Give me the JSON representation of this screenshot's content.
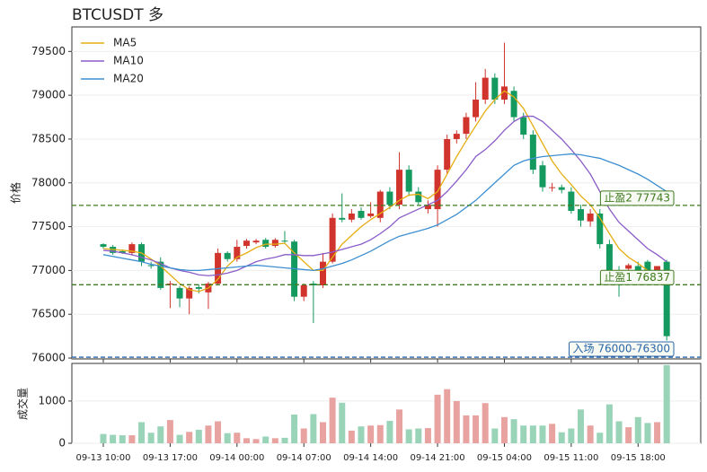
{
  "chart_data": {
    "type": "candlestick",
    "title": "BTCUSDT  多",
    "y_label": "价格",
    "volume_label": "成交量",
    "categories": [
      "09-13 10:00",
      null,
      null,
      null,
      null,
      null,
      null,
      "09-13 17:00",
      null,
      null,
      null,
      null,
      null,
      null,
      "09-14 00:00",
      null,
      null,
      null,
      null,
      null,
      null,
      "09-14 07:00",
      null,
      null,
      null,
      null,
      null,
      null,
      "09-14 14:00",
      null,
      null,
      null,
      null,
      null,
      null,
      "09-14 21:00",
      null,
      null,
      null,
      null,
      null,
      null,
      "09-15 04:00",
      null,
      null,
      null,
      null,
      null,
      null,
      "09-15 11:00",
      null,
      null,
      null,
      null,
      null,
      null,
      "09-15 18:00",
      null,
      null,
      null
    ],
    "open": [
      77300,
      77270,
      77220,
      77200,
      77300,
      77060,
      77100,
      76850,
      76800,
      76680,
      76810,
      76750,
      76850,
      77200,
      77130,
      77280,
      77320,
      77350,
      77280,
      77340,
      77330,
      76700,
      76850,
      76830,
      77100,
      77600,
      77580,
      77680,
      77620,
      77600,
      77900,
      77750,
      78150,
      77900,
      77700,
      77700,
      78150,
      78500,
      78560,
      78750,
      78950,
      79200,
      78950,
      79050,
      78750,
      78550,
      78200,
      77950,
      77950,
      77900,
      77700,
      77560,
      77650,
      77300,
      77000,
      77020,
      77050,
      77100,
      77000,
      77100
    ],
    "high": [
      77310,
      77290,
      77240,
      77320,
      77320,
      77100,
      77150,
      76880,
      76820,
      76820,
      76840,
      76870,
      77250,
      77220,
      77350,
      77360,
      77360,
      77370,
      77370,
      77450,
      77350,
      76850,
      76880,
      77200,
      77650,
      77880,
      77700,
      77720,
      77780,
      77920,
      77950,
      78350,
      78200,
      77950,
      77800,
      78200,
      78550,
      78600,
      78800,
      79150,
      79300,
      79250,
      79600,
      79100,
      78800,
      78600,
      78250,
      78000,
      77980,
      77950,
      77750,
      77700,
      77700,
      77350,
      77050,
      77080,
      77100,
      77120,
      77050,
      77120
    ],
    "low": [
      77250,
      77180,
      77190,
      77170,
      77050,
      77020,
      76780,
      76570,
      76580,
      76500,
      76740,
      76560,
      76830,
      77100,
      77100,
      77250,
      77300,
      77250,
      77260,
      77310,
      76650,
      76650,
      76400,
      76800,
      77080,
      77550,
      77550,
      77580,
      77600,
      77550,
      77700,
      77700,
      77850,
      77750,
      77650,
      77500,
      78100,
      78450,
      78500,
      78700,
      78900,
      78900,
      78900,
      78700,
      78500,
      78100,
      77900,
      77900,
      77880,
      77650,
      77500,
      77500,
      77250,
      76950,
      76700,
      76980,
      76950,
      76900,
      76950,
      76200
    ],
    "close": [
      77270,
      77200,
      77200,
      77300,
      77100,
      77050,
      76800,
      76850,
      76680,
      76800,
      76790,
      76850,
      77200,
      77130,
      77270,
      77340,
      77340,
      77270,
      77350,
      77330,
      76700,
      76830,
      76830,
      77100,
      77600,
      77580,
      77650,
      77600,
      77650,
      77900,
      77750,
      78150,
      77900,
      77780,
      77750,
      78150,
      78500,
      78560,
      78750,
      78950,
      79200,
      78950,
      79100,
      78750,
      78550,
      78150,
      77950,
      77950,
      77920,
      77680,
      77570,
      77650,
      77300,
      77000,
      76990,
      77060,
      76980,
      76950,
      77050,
      76250
    ],
    "volume": [
      220,
      200,
      190,
      190,
      500,
      250,
      400,
      550,
      200,
      270,
      320,
      420,
      520,
      240,
      250,
      120,
      100,
      160,
      120,
      130,
      680,
      350,
      690,
      500,
      1080,
      960,
      300,
      400,
      420,
      430,
      530,
      800,
      330,
      350,
      360,
      1150,
      1280,
      1000,
      660,
      660,
      950,
      350,
      620,
      570,
      420,
      420,
      420,
      460,
      260,
      350,
      800,
      420,
      250,
      920,
      520,
      380,
      620,
      480,
      500,
      1850
    ],
    "up_color": "#d0342c",
    "down_color": "#14995f",
    "volume_up_color": "#e8a3a1",
    "volume_down_color": "#99d4b8",
    "series": [
      {
        "name": "MA5",
        "color": "#e6ad12",
        "values": [
          77250,
          77240,
          77230,
          77220,
          77200,
          77130,
          77050,
          76950,
          76850,
          76780,
          76760,
          76800,
          76900,
          77050,
          77150,
          77200,
          77260,
          77300,
          77300,
          77310,
          77200,
          77100,
          77000,
          77000,
          77150,
          77300,
          77400,
          77500,
          77580,
          77650,
          77720,
          77800,
          77860,
          77870,
          77820,
          77900,
          78100,
          78300,
          78480,
          78650,
          78820,
          78950,
          79050,
          78980,
          78850,
          78650,
          78450,
          78250,
          78100,
          77980,
          77850,
          77750,
          77600,
          77420,
          77250,
          77150,
          77080,
          77000,
          76950,
          76900
        ]
      },
      {
        "name": "MA10",
        "color": "#8a5cc8",
        "values": [
          77230,
          77220,
          77200,
          77180,
          77150,
          77120,
          77080,
          77030,
          77000,
          76980,
          76950,
          76940,
          76950,
          76970,
          77000,
          77050,
          77100,
          77130,
          77150,
          77180,
          77180,
          77170,
          77170,
          77190,
          77210,
          77240,
          77270,
          77300,
          77350,
          77420,
          77500,
          77600,
          77650,
          77700,
          77750,
          77800,
          77900,
          78020,
          78150,
          78300,
          78380,
          78480,
          78600,
          78700,
          78760,
          78760,
          78700,
          78600,
          78500,
          78380,
          78250,
          78100,
          77900,
          77700,
          77550,
          77450,
          77350,
          77250,
          77180,
          77100
        ]
      },
      {
        "name": "MA20",
        "color": "#3d8fd1",
        "values": [
          77180,
          77160,
          77140,
          77120,
          77100,
          77070,
          77050,
          77030,
          77010,
          77000,
          77000,
          77010,
          77020,
          77030,
          77040,
          77050,
          77060,
          77050,
          77040,
          77030,
          77020,
          77010,
          77000,
          77020,
          77050,
          77080,
          77120,
          77170,
          77220,
          77280,
          77340,
          77390,
          77420,
          77450,
          77480,
          77520,
          77580,
          77640,
          77720,
          77800,
          77900,
          78000,
          78100,
          78200,
          78250,
          78280,
          78300,
          78310,
          78320,
          78330,
          78320,
          78300,
          78280,
          78240,
          78200,
          78150,
          78100,
          78040,
          77970,
          77900
        ]
      }
    ],
    "levels": [
      {
        "label": "止盈2 77743",
        "value": 77743,
        "color": "#3f7a1e"
      },
      {
        "label": "止盈1 76837",
        "value": 76837,
        "color": "#3f7a1e"
      },
      {
        "label": "入场 76000-76300",
        "value": 76010,
        "color": "#2a66a8"
      }
    ],
    "ylim": [
      75990,
      79780
    ],
    "yticks": [
      76000,
      76500,
      77000,
      77500,
      78000,
      78500,
      79000,
      79500
    ],
    "volume_ylim": [
      0,
      1890
    ],
    "volume_yticks": [
      0,
      1000
    ],
    "grid": true,
    "legend": "upper left"
  }
}
